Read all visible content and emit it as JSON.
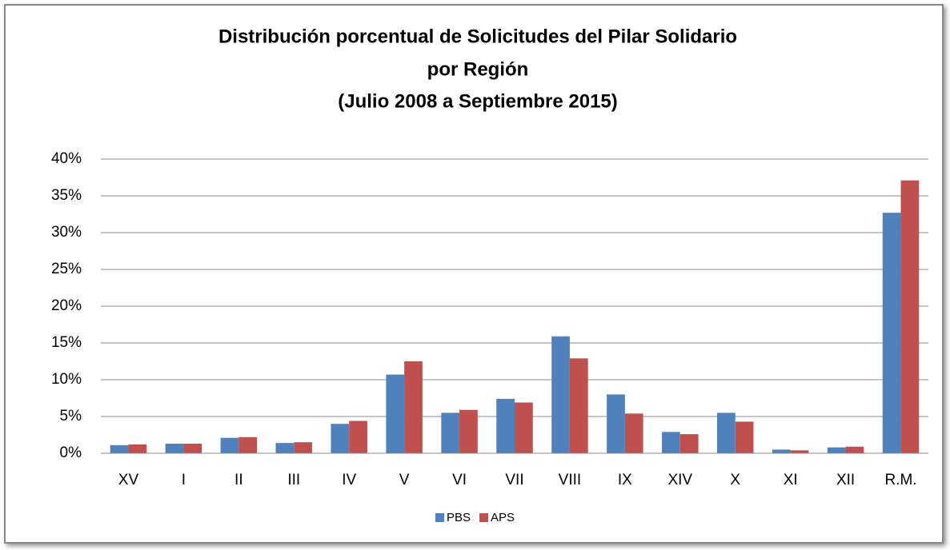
{
  "chart_data": {
    "type": "bar",
    "title": [
      "Distribución porcentual de Solicitudes del Pilar Solidario",
      "por Región",
      "(Julio 2008 a Septiembre 2015)"
    ],
    "categories": [
      "XV",
      "I",
      "II",
      "III",
      "IV",
      "V",
      "VI",
      "VII",
      "VIII",
      "IX",
      "XIV",
      "X",
      "XI",
      "XII",
      "R.M."
    ],
    "series": [
      {
        "name": "PBS",
        "color": "#4f81bd",
        "values": [
          1.1,
          1.3,
          2.1,
          1.4,
          4.0,
          10.7,
          5.5,
          7.4,
          15.9,
          8.0,
          2.9,
          5.5,
          0.5,
          0.8,
          32.7
        ]
      },
      {
        "name": "APS",
        "color": "#c0504d",
        "values": [
          1.2,
          1.3,
          2.2,
          1.5,
          4.4,
          12.5,
          5.9,
          6.9,
          12.9,
          5.4,
          2.6,
          4.3,
          0.4,
          0.9,
          37.1
        ]
      }
    ],
    "ylim": [
      0,
      40
    ],
    "yticks": [
      {
        "value": 0,
        "label": "0%"
      },
      {
        "value": 5,
        "label": "5%"
      },
      {
        "value": 10,
        "label": "10%"
      },
      {
        "value": 15,
        "label": "15%"
      },
      {
        "value": 20,
        "label": "20%"
      },
      {
        "value": 25,
        "label": "25%"
      },
      {
        "value": 30,
        "label": "30%"
      },
      {
        "value": 35,
        "label": "35%"
      },
      {
        "value": 40,
        "label": "40%"
      }
    ],
    "grid": true,
    "legend": "bottom"
  }
}
